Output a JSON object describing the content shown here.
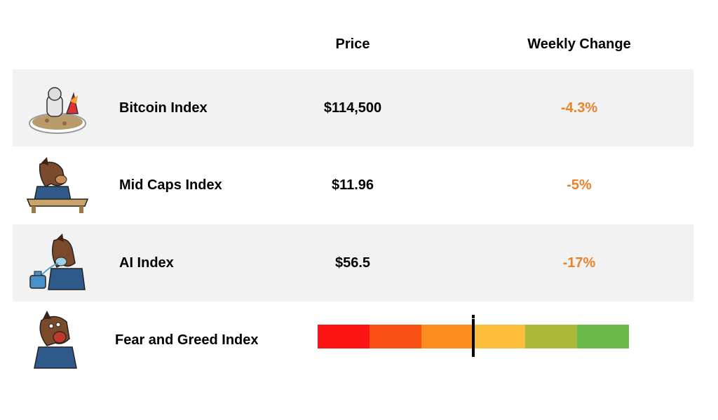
{
  "headers": {
    "price": "Price",
    "change": "Weekly Change"
  },
  "rows": [
    {
      "name": "Bitcoin Index",
      "price": "$114,500",
      "change": "-4.3%",
      "icon": "rocket-moon-icon"
    },
    {
      "name": "Mid Caps Index",
      "price": "$11.96",
      "change": "-5%",
      "icon": "horse-thinking-icon"
    },
    {
      "name": "AI Index",
      "price": "$56.5",
      "change": "-17%",
      "icon": "horse-oxygen-icon"
    }
  ],
  "fear_greed": {
    "label": "Fear and Greed Index",
    "icon": "horse-screaming-icon",
    "segments": [
      "#fb1414",
      "#f95116",
      "#f98e1f",
      "#fcbc3c",
      "#aab93a",
      "#6bb84b"
    ],
    "needle_fraction": 0.5
  },
  "colors": {
    "negative_change": "#e8832a",
    "row_shade": "#f2f2f2"
  }
}
